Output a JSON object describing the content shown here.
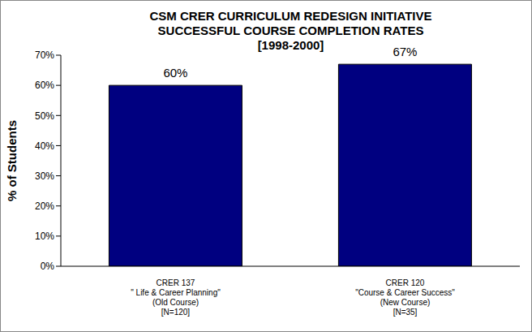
{
  "chart_data": {
    "type": "bar",
    "title": "CSM CRER CURRICULUM REDESIGN INITIATIVE\nSUCCESSFUL COURSE COMPLETION RATES\n[1998-2000]",
    "y_label": "% of Students",
    "categories": [
      "CRER 137\n\" Life & Career Planning\"\n(Old Course)\n[N=120]",
      "CRER 120\n\"Course & Career Success\"\n(New Course)\n[N=35]"
    ],
    "values": [
      60,
      67
    ],
    "value_labels": [
      "60%",
      "67%"
    ],
    "data_labels": true,
    "color": "#000080",
    "ylim": [
      0,
      70
    ],
    "yticks": [
      {
        "value": 0,
        "label": "0%"
      },
      {
        "value": 10,
        "label": "10%"
      },
      {
        "value": 20,
        "label": "20%"
      },
      {
        "value": 30,
        "label": "30%"
      },
      {
        "value": 40,
        "label": "40%"
      },
      {
        "value": 50,
        "label": "50%"
      },
      {
        "value": 60,
        "label": "60%"
      },
      {
        "value": 70,
        "label": "70%"
      }
    ],
    "grid": false
  }
}
